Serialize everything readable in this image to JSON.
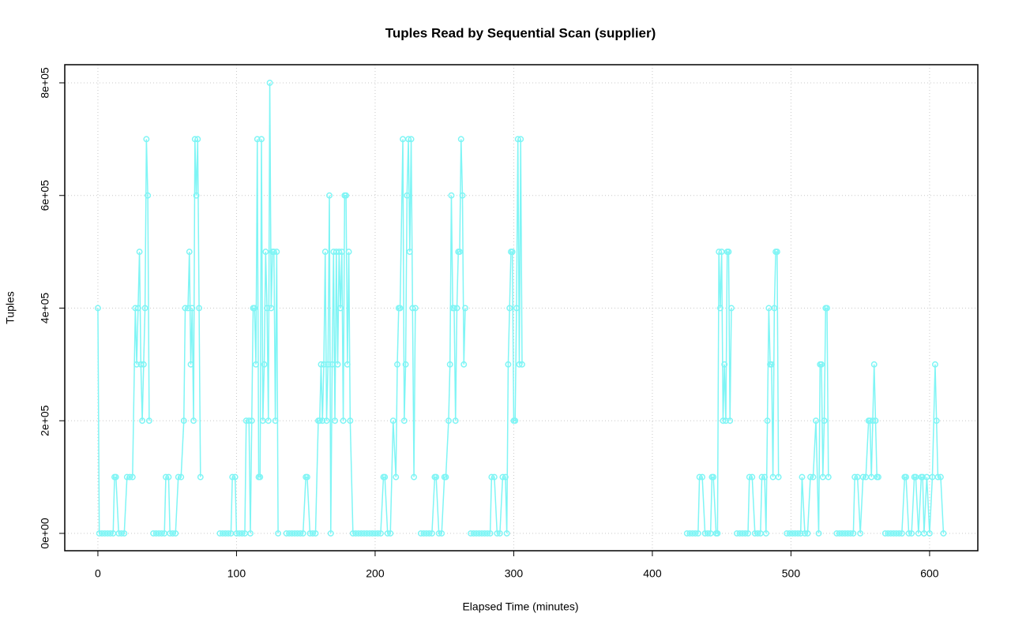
{
  "chart_data": {
    "type": "line",
    "title": "Tuples Read by Sequential Scan (supplier)",
    "x_label": "Elapsed Time (minutes)",
    "y_label": "Tuples",
    "color": "#7ff5f5",
    "grid": true,
    "markers": true,
    "xlim": [
      -23.9,
      634.8
    ],
    "xticks": [
      0,
      100,
      200,
      300,
      400,
      500,
      600
    ],
    "ylim": [
      -30800,
      832200
    ],
    "yticks": [
      {
        "value": 0,
        "label": "0e+00"
      },
      {
        "value": 200000,
        "label": "2e+05"
      },
      {
        "value": 400000,
        "label": "4e+05"
      },
      {
        "value": 600000,
        "label": "6e+05"
      },
      {
        "value": 800000,
        "label": "8e+05"
      }
    ],
    "x": [
      0,
      1,
      3,
      5,
      7,
      9,
      11,
      12,
      13,
      15,
      17,
      19,
      21,
      23,
      25,
      27,
      28,
      29,
      30,
      31,
      32,
      33,
      34,
      35,
      36,
      37,
      38,
      40,
      42,
      44,
      46,
      48,
      49,
      51,
      52,
      54,
      56,
      58,
      60,
      62,
      63,
      65,
      66,
      67,
      68,
      69,
      70,
      71,
      72,
      73,
      74,
      76,
      88,
      90,
      92,
      94,
      96,
      97,
      99,
      100,
      102,
      104,
      106,
      107,
      109,
      110,
      111,
      112,
      113,
      114,
      115,
      116,
      117,
      118,
      119,
      120,
      121,
      122,
      123,
      124,
      125,
      126,
      127,
      128,
      129,
      130,
      133,
      136,
      138,
      140,
      142,
      144,
      146,
      148,
      150,
      151,
      153,
      155,
      157,
      159,
      160,
      161,
      162,
      163,
      164,
      165,
      166,
      167,
      168,
      169,
      170,
      171,
      172,
      173,
      174,
      175,
      176,
      177,
      178,
      179,
      180,
      181,
      182,
      184,
      186,
      188,
      190,
      192,
      194,
      196,
      198,
      200,
      202,
      204,
      206,
      207,
      209,
      211,
      213,
      215,
      216,
      217,
      218,
      220,
      221,
      222,
      223,
      224,
      225,
      226,
      227,
      228,
      229,
      231,
      233,
      235,
      237,
      239,
      241,
      243,
      244,
      246,
      248,
      250,
      251,
      253,
      254,
      255,
      256,
      257,
      258,
      259,
      260,
      261,
      262,
      263,
      264,
      265,
      267,
      269,
      271,
      273,
      275,
      277,
      279,
      281,
      283,
      284,
      286,
      288,
      290,
      292,
      294,
      295,
      296,
      297,
      298,
      299,
      300,
      301,
      302,
      303,
      304,
      305,
      306,
      310,
      425,
      427,
      429,
      431,
      433,
      434,
      436,
      438,
      440,
      442,
      443,
      444,
      446,
      447,
      448,
      449,
      450,
      451,
      452,
      453,
      454,
      455,
      456,
      457,
      459,
      461,
      463,
      465,
      467,
      469,
      470,
      472,
      474,
      476,
      478,
      479,
      481,
      482,
      483,
      484,
      485,
      486,
      487,
      488,
      489,
      490,
      491,
      494,
      497,
      499,
      501,
      503,
      505,
      507,
      508,
      510,
      512,
      514,
      516,
      518,
      520,
      521,
      522,
      523,
      524,
      525,
      526,
      527,
      531,
      533,
      535,
      537,
      539,
      541,
      543,
      545,
      546,
      548,
      550,
      552,
      554,
      556,
      557,
      558,
      559,
      560,
      561,
      562,
      563,
      566,
      568,
      570,
      572,
      574,
      576,
      578,
      580,
      582,
      583,
      585,
      587,
      589,
      590,
      592,
      594,
      595,
      596,
      598,
      600,
      602,
      604,
      605,
      606,
      608,
      610
    ],
    "values": [
      400000,
      0,
      0,
      0,
      0,
      0,
      0,
      100000,
      100000,
      0,
      0,
      0,
      100000,
      100000,
      100000,
      400000,
      300000,
      400000,
      500000,
      300000,
      200000,
      300000,
      400000,
      700000,
      600000,
      200000,
      null,
      0,
      0,
      0,
      0,
      0,
      100000,
      100000,
      0,
      0,
      0,
      100000,
      100000,
      200000,
      400000,
      400000,
      500000,
      300000,
      400000,
      200000,
      700000,
      600000,
      700000,
      400000,
      100000,
      null,
      0,
      0,
      0,
      0,
      0,
      100000,
      100000,
      0,
      0,
      0,
      0,
      200000,
      200000,
      0,
      200000,
      400000,
      400000,
      300000,
      700000,
      100000,
      100000,
      700000,
      200000,
      300000,
      500000,
      400000,
      200000,
      800000,
      400000,
      500000,
      500000,
      200000,
      500000,
      0,
      null,
      0,
      0,
      0,
      0,
      0,
      0,
      0,
      100000,
      100000,
      0,
      0,
      0,
      200000,
      200000,
      300000,
      200000,
      300000,
      500000,
      200000,
      300000,
      600000,
      0,
      300000,
      500000,
      200000,
      500000,
      300000,
      500000,
      400000,
      500000,
      200000,
      600000,
      600000,
      300000,
      500000,
      200000,
      0,
      0,
      0,
      0,
      0,
      0,
      0,
      0,
      0,
      0,
      0,
      100000,
      100000,
      0,
      0,
      200000,
      100000,
      300000,
      400000,
      400000,
      700000,
      200000,
      300000,
      600000,
      700000,
      500000,
      700000,
      400000,
      100000,
      400000,
      null,
      0,
      0,
      0,
      0,
      0,
      100000,
      100000,
      0,
      0,
      100000,
      100000,
      200000,
      300000,
      600000,
      400000,
      400000,
      200000,
      400000,
      500000,
      500000,
      700000,
      600000,
      300000,
      400000,
      null,
      0,
      0,
      0,
      0,
      0,
      0,
      0,
      0,
      100000,
      100000,
      0,
      0,
      100000,
      100000,
      0,
      300000,
      400000,
      500000,
      500000,
      200000,
      200000,
      400000,
      700000,
      300000,
      700000,
      300000,
      null,
      0,
      0,
      0,
      0,
      0,
      100000,
      100000,
      0,
      0,
      0,
      100000,
      100000,
      0,
      0,
      500000,
      400000,
      500000,
      200000,
      300000,
      200000,
      500000,
      500000,
      200000,
      400000,
      null,
      0,
      0,
      0,
      0,
      0,
      100000,
      100000,
      0,
      0,
      0,
      100000,
      100000,
      0,
      200000,
      400000,
      300000,
      300000,
      100000,
      400000,
      500000,
      500000,
      100000,
      null,
      0,
      0,
      0,
      0,
      0,
      0,
      100000,
      0,
      0,
      100000,
      100000,
      200000,
      0,
      300000,
      300000,
      100000,
      200000,
      400000,
      400000,
      100000,
      null,
      0,
      0,
      0,
      0,
      0,
      0,
      0,
      100000,
      100000,
      0,
      100000,
      100000,
      200000,
      200000,
      100000,
      200000,
      300000,
      200000,
      100000,
      100000,
      null,
      0,
      0,
      0,
      0,
      0,
      0,
      0,
      100000,
      100000,
      0,
      0,
      100000,
      100000,
      0,
      100000,
      100000,
      0,
      100000,
      0,
      100000,
      300000,
      200000,
      100000,
      100000,
      0
    ]
  }
}
